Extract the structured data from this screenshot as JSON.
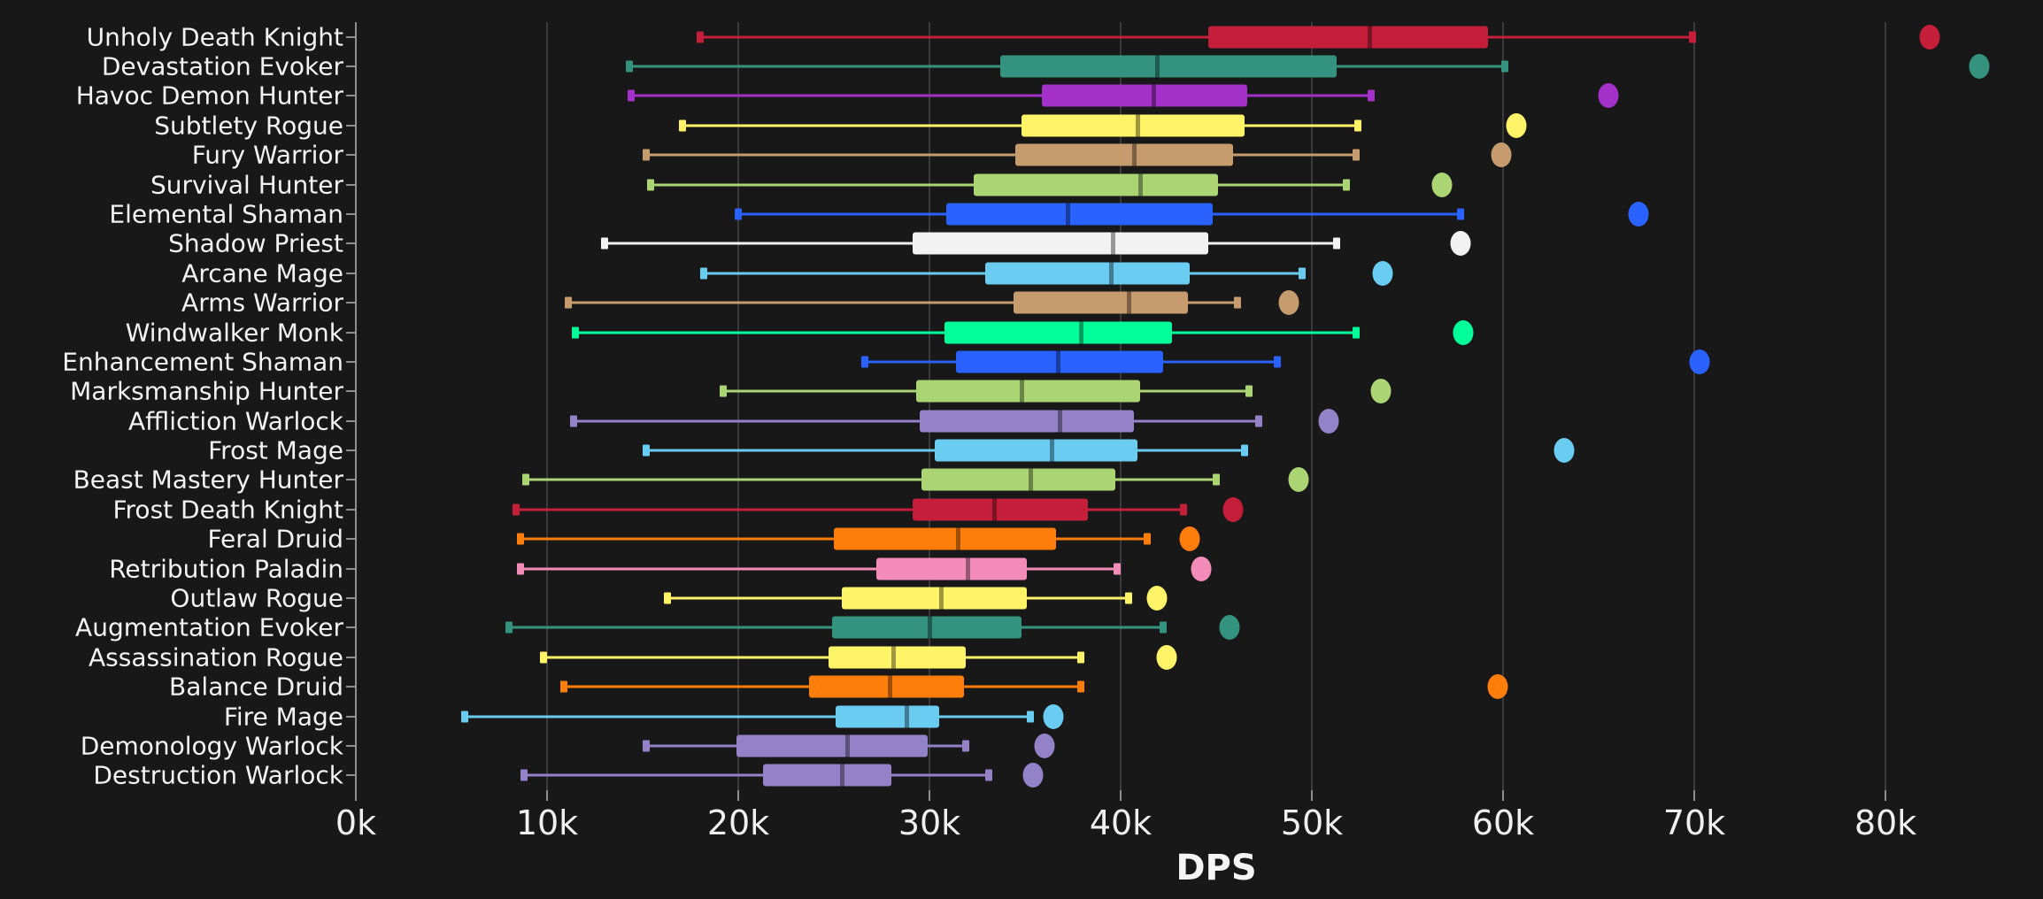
{
  "chart_data": {
    "type": "boxplot",
    "orientation": "horizontal",
    "title": "",
    "xlabel": "DPS",
    "x_unit": "k",
    "x_range_k": [
      0,
      88
    ],
    "x_tick_values_k": [
      0,
      10,
      20,
      30,
      40,
      50,
      60,
      70,
      80
    ],
    "x_tick_labels": [
      "0k",
      "10k",
      "20k",
      "30k",
      "40k",
      "50k",
      "60k",
      "70k",
      "80k"
    ],
    "grid": "vertical",
    "legend": "none",
    "background_color": "#181818",
    "gridline_color": "#3a3a3a",
    "axis_color": "#8f8f8f",
    "text_color": "#f3f3f3",
    "series": [
      {
        "label": "Unholy Death Knight",
        "color": "#c41e3a",
        "whisker_low": 18.0,
        "q1": 44.6,
        "median": 53.0,
        "q3": 59.2,
        "whisker_high": 69.9,
        "outlier": 82.3
      },
      {
        "label": "Devastation Evoker",
        "color": "#33937f",
        "whisker_low": 14.3,
        "q1": 33.7,
        "median": 41.9,
        "q3": 51.3,
        "whisker_high": 60.1,
        "outlier": 84.9
      },
      {
        "label": "Havoc Demon Hunter",
        "color": "#a330c9",
        "whisker_low": 14.4,
        "q1": 35.9,
        "median": 41.7,
        "q3": 46.6,
        "whisker_high": 53.1,
        "outlier": 65.5
      },
      {
        "label": "Subtlety Rogue",
        "color": "#fff468",
        "whisker_low": 17.1,
        "q1": 34.8,
        "median": 40.9,
        "q3": 46.5,
        "whisker_high": 52.4,
        "outlier": 60.7
      },
      {
        "label": "Fury Warrior",
        "color": "#c69b6d",
        "whisker_low": 15.2,
        "q1": 34.5,
        "median": 40.7,
        "q3": 45.9,
        "whisker_high": 52.3,
        "outlier": 59.9
      },
      {
        "label": "Survival Hunter",
        "color": "#abd473",
        "whisker_low": 15.4,
        "q1": 32.3,
        "median": 41.0,
        "q3": 45.1,
        "whisker_high": 51.8,
        "outlier": 56.8
      },
      {
        "label": "Elemental Shaman",
        "color": "#2962ff",
        "whisker_low": 20.0,
        "q1": 30.9,
        "median": 37.2,
        "q3": 44.8,
        "whisker_high": 57.8,
        "outlier": 67.1
      },
      {
        "label": "Shadow Priest",
        "color": "#f2f2f2",
        "whisker_low": 13.0,
        "q1": 29.1,
        "median": 39.6,
        "q3": 44.6,
        "whisker_high": 51.3,
        "outlier": 57.8
      },
      {
        "label": "Arcane Mage",
        "color": "#69ccf0",
        "whisker_low": 18.2,
        "q1": 32.9,
        "median": 39.5,
        "q3": 43.6,
        "whisker_high": 49.5,
        "outlier": 53.7
      },
      {
        "label": "Arms Warrior",
        "color": "#c69b6d",
        "whisker_low": 11.1,
        "q1": 34.4,
        "median": 40.4,
        "q3": 43.5,
        "whisker_high": 46.1,
        "outlier": 48.8
      },
      {
        "label": "Windwalker Monk",
        "color": "#00ff98",
        "whisker_low": 11.5,
        "q1": 30.8,
        "median": 37.9,
        "q3": 42.7,
        "whisker_high": 52.3,
        "outlier": 57.9
      },
      {
        "label": "Enhancement Shaman",
        "color": "#2962ff",
        "whisker_low": 26.6,
        "q1": 31.4,
        "median": 36.7,
        "q3": 42.2,
        "whisker_high": 48.2,
        "outlier": 70.3
      },
      {
        "label": "Marksmanship Hunter",
        "color": "#abd473",
        "whisker_low": 19.2,
        "q1": 29.3,
        "median": 34.8,
        "q3": 41.0,
        "whisker_high": 46.7,
        "outlier": 53.6
      },
      {
        "label": "Affliction Warlock",
        "color": "#9482c9",
        "whisker_low": 11.4,
        "q1": 29.5,
        "median": 36.8,
        "q3": 40.7,
        "whisker_high": 47.2,
        "outlier": 50.9
      },
      {
        "label": "Frost Mage",
        "color": "#69ccf0",
        "whisker_low": 15.2,
        "q1": 30.3,
        "median": 36.4,
        "q3": 40.9,
        "whisker_high": 46.5,
        "outlier": 63.2
      },
      {
        "label": "Beast Mastery Hunter",
        "color": "#abd473",
        "whisker_low": 8.9,
        "q1": 29.6,
        "median": 35.3,
        "q3": 39.7,
        "whisker_high": 45.0,
        "outlier": 49.3
      },
      {
        "label": "Frost Death Knight",
        "color": "#c41e3a",
        "whisker_low": 8.4,
        "q1": 29.1,
        "median": 33.4,
        "q3": 38.3,
        "whisker_high": 43.3,
        "outlier": 45.9
      },
      {
        "label": "Feral Druid",
        "color": "#ff7d0a",
        "whisker_low": 8.6,
        "q1": 25.0,
        "median": 31.5,
        "q3": 36.6,
        "whisker_high": 41.4,
        "outlier": 43.6
      },
      {
        "label": "Retribution Paladin",
        "color": "#f48cba",
        "whisker_low": 8.6,
        "q1": 27.2,
        "median": 32.0,
        "q3": 35.1,
        "whisker_high": 39.8,
        "outlier": 44.2
      },
      {
        "label": "Outlaw Rogue",
        "color": "#fff468",
        "whisker_low": 16.3,
        "q1": 25.4,
        "median": 30.6,
        "q3": 35.1,
        "whisker_high": 40.4,
        "outlier": 41.9
      },
      {
        "label": "Augmentation Evoker",
        "color": "#33937f",
        "whisker_low": 8.0,
        "q1": 24.9,
        "median": 30.0,
        "q3": 34.8,
        "whisker_high": 42.2,
        "outlier": 45.7
      },
      {
        "label": "Assassination Rogue",
        "color": "#fff468",
        "whisker_low": 9.8,
        "q1": 24.7,
        "median": 28.1,
        "q3": 31.9,
        "whisker_high": 37.9,
        "outlier": 42.4
      },
      {
        "label": "Balance Druid",
        "color": "#ff7d0a",
        "whisker_low": 10.9,
        "q1": 23.7,
        "median": 27.9,
        "q3": 31.8,
        "whisker_high": 37.9,
        "outlier": 59.7
      },
      {
        "label": "Fire Mage",
        "color": "#69ccf0",
        "whisker_low": 5.7,
        "q1": 25.1,
        "median": 28.8,
        "q3": 30.5,
        "whisker_high": 35.3,
        "outlier": 36.5
      },
      {
        "label": "Demonology Warlock",
        "color": "#9482c9",
        "whisker_low": 15.2,
        "q1": 19.9,
        "median": 25.7,
        "q3": 29.9,
        "whisker_high": 31.9,
        "outlier": 36.0
      },
      {
        "label": "Destruction Warlock",
        "color": "#9482c9",
        "whisker_low": 8.8,
        "q1": 21.3,
        "median": 25.4,
        "q3": 28.0,
        "whisker_high": 33.1,
        "outlier": 35.4
      }
    ]
  }
}
